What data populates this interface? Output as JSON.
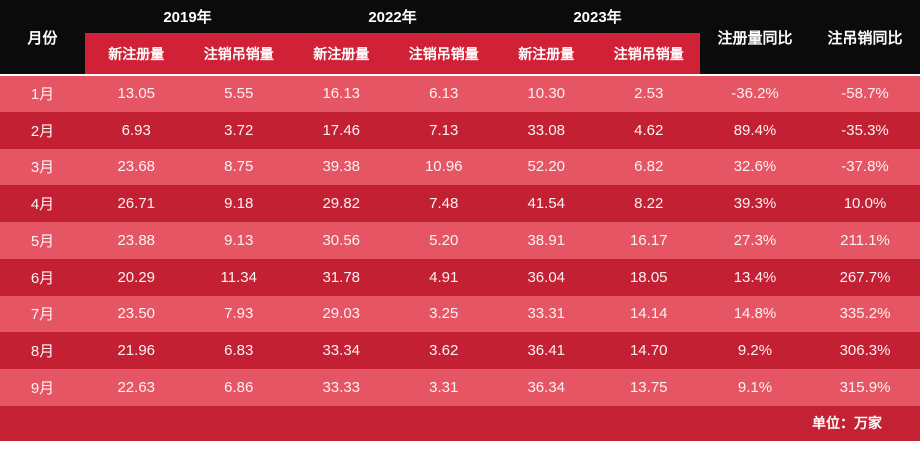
{
  "chart_data": {
    "type": "table",
    "month_header": "月份",
    "year_groups": [
      {
        "year": "2019年",
        "sub": [
          "新注册量",
          "注销吊销量"
        ]
      },
      {
        "year": "2022年",
        "sub": [
          "新注册量",
          "注销吊销量"
        ]
      },
      {
        "year": "2023年",
        "sub": [
          "新注册量",
          "注销吊销量"
        ]
      }
    ],
    "yoy_headers": [
      "注册量同比",
      "注吊销同比"
    ],
    "rows": [
      {
        "month": "1月",
        "values": [
          "13.05",
          "5.55",
          "16.13",
          "6.13",
          "10.30",
          "2.53"
        ],
        "yoy": [
          "-36.2%",
          "-58.7%"
        ]
      },
      {
        "month": "2月",
        "values": [
          "6.93",
          "3.72",
          "17.46",
          "7.13",
          "33.08",
          "4.62"
        ],
        "yoy": [
          "89.4%",
          "-35.3%"
        ]
      },
      {
        "month": "3月",
        "values": [
          "23.68",
          "8.75",
          "39.38",
          "10.96",
          "52.20",
          "6.82"
        ],
        "yoy": [
          "32.6%",
          "-37.8%"
        ]
      },
      {
        "month": "4月",
        "values": [
          "26.71",
          "9.18",
          "29.82",
          "7.48",
          "41.54",
          "8.22"
        ],
        "yoy": [
          "39.3%",
          "10.0%"
        ]
      },
      {
        "month": "5月",
        "values": [
          "23.88",
          "9.13",
          "30.56",
          "5.20",
          "38.91",
          "16.17"
        ],
        "yoy": [
          "27.3%",
          "211.1%"
        ]
      },
      {
        "month": "6月",
        "values": [
          "20.29",
          "11.34",
          "31.78",
          "4.91",
          "36.04",
          "18.05"
        ],
        "yoy": [
          "13.4%",
          "267.7%"
        ]
      },
      {
        "month": "7月",
        "values": [
          "23.50",
          "7.93",
          "29.03",
          "3.25",
          "33.31",
          "14.14"
        ],
        "yoy": [
          "14.8%",
          "335.2%"
        ]
      },
      {
        "month": "8月",
        "values": [
          "21.96",
          "6.83",
          "33.34",
          "3.62",
          "36.41",
          "14.70"
        ],
        "yoy": [
          "9.2%",
          "306.3%"
        ]
      },
      {
        "month": "9月",
        "values": [
          "22.63",
          "6.86",
          "33.33",
          "3.31",
          "36.34",
          "13.75"
        ],
        "yoy": [
          "9.1%",
          "315.9%"
        ]
      }
    ],
    "unit_note": "单位：万家",
    "colors": {
      "header_bg": "#0b0b0b",
      "subheader_band": "#d02136",
      "row_light": "#e55564",
      "row_dark": "#c42033",
      "footer_bg": "#c32134",
      "text": "#ffffff"
    }
  }
}
